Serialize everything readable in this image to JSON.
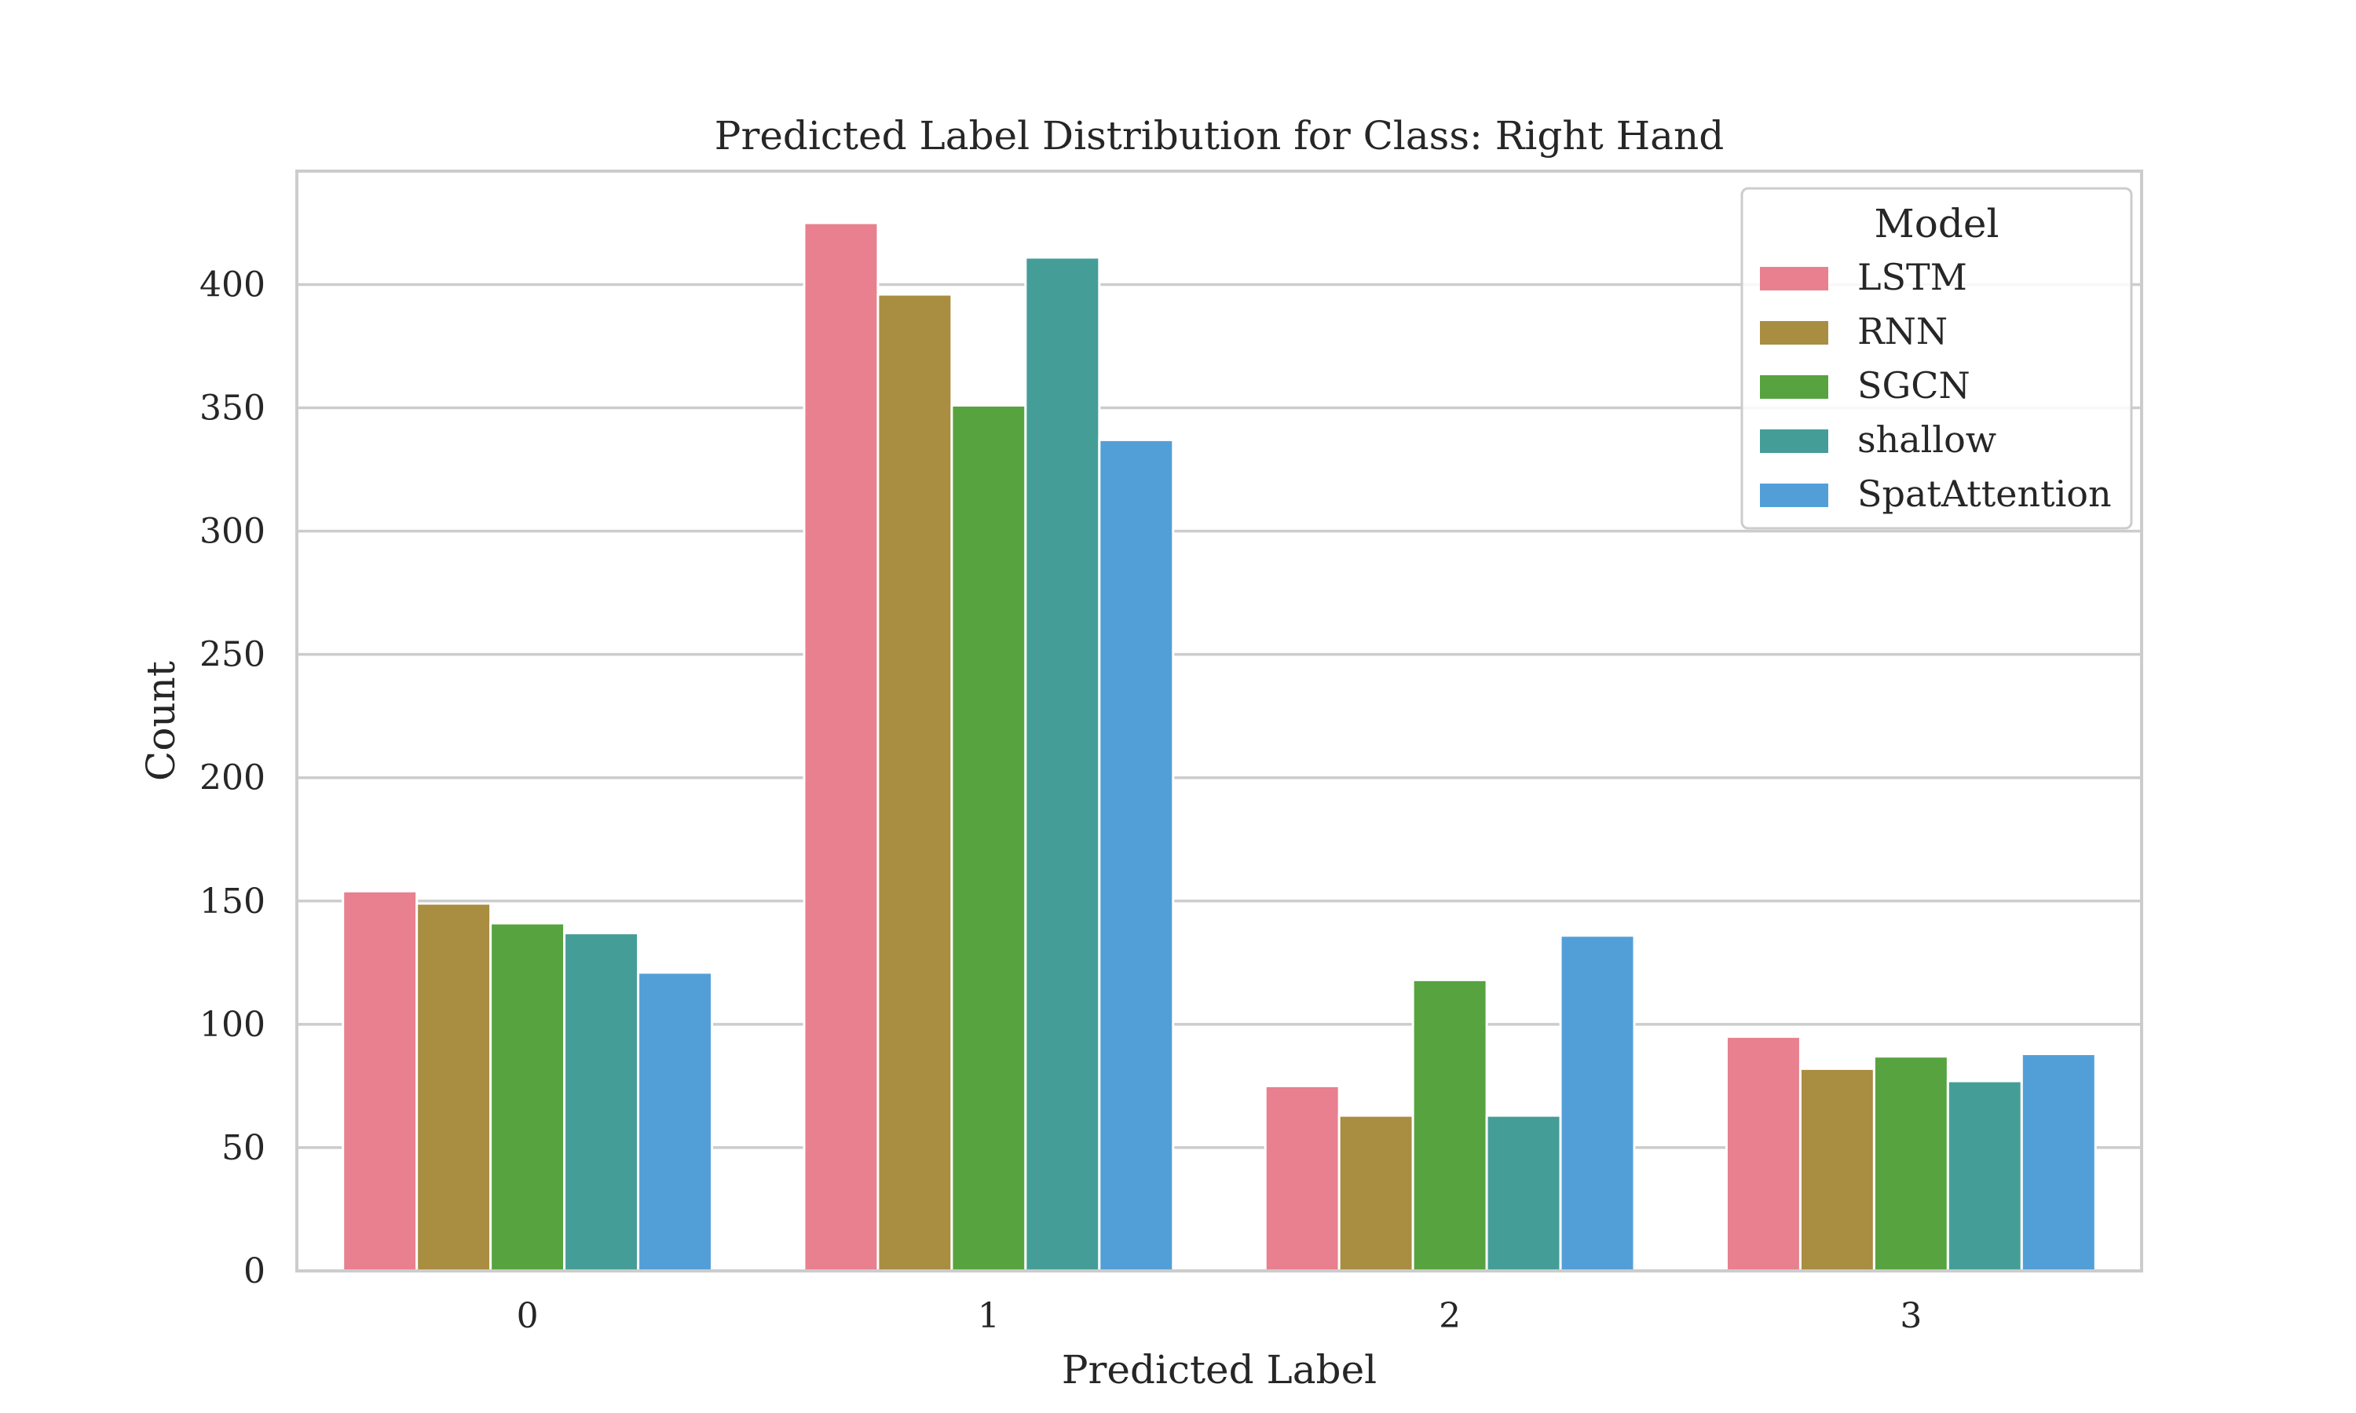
{
  "chart_data": {
    "type": "bar",
    "title": "Predicted Label Distribution for Class: Right Hand",
    "xlabel": "Predicted Label",
    "ylabel": "Count",
    "categories": [
      "0",
      "1",
      "2",
      "3"
    ],
    "ylim": [
      0,
      446
    ],
    "yticks": [
      0,
      50,
      100,
      150,
      200,
      250,
      300,
      350,
      400
    ],
    "grid": true,
    "legend": {
      "title": "Model",
      "placement": "top-right"
    },
    "series": [
      {
        "name": "LSTM",
        "color": "#e8808f",
        "values": [
          154,
          425,
          75,
          95
        ]
      },
      {
        "name": "RNN",
        "color": "#a98d40",
        "values": [
          149,
          396,
          63,
          82
        ]
      },
      {
        "name": "SGCN",
        "color": "#57a340",
        "values": [
          141,
          351,
          118,
          87
        ]
      },
      {
        "name": "shallow",
        "color": "#449e97",
        "values": [
          137,
          411,
          63,
          77
        ]
      },
      {
        "name": "SpatAttention",
        "color": "#529fd7",
        "values": [
          121,
          337,
          136,
          88
        ]
      }
    ]
  }
}
